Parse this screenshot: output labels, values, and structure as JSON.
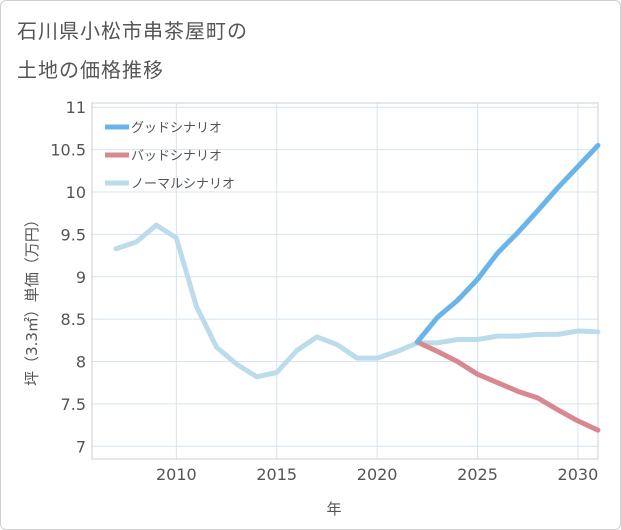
{
  "title_line1": "石川県小松市串茶屋町の",
  "title_line2": "土地の価格推移",
  "chart_data": {
    "type": "line",
    "title": "石川県小松市串茶屋町の土地の価格推移",
    "xlabel": "年",
    "ylabel": "坪（3.3㎡）単価（万円）",
    "xlim": [
      2005.8,
      2031
    ],
    "ylim": [
      6.85,
      11.05
    ],
    "x_ticks": [
      2010,
      2015,
      2020,
      2025,
      2030
    ],
    "y_ticks": [
      7,
      7.5,
      8,
      8.5,
      9,
      9.5,
      10,
      10.5,
      11
    ],
    "grid": true,
    "legend_position": "top-left",
    "series": [
      {
        "name": "グッドシナリオ",
        "color": "#6ab4ea",
        "x": [
          2022,
          2023,
          2024,
          2025,
          2026,
          2027,
          2028,
          2029,
          2030,
          2031
        ],
        "values": [
          8.23,
          8.52,
          8.72,
          8.97,
          9.28,
          9.52,
          9.78,
          10.05,
          10.3,
          10.55
        ]
      },
      {
        "name": "バッドシナリオ",
        "color": "#d88890",
        "x": [
          2022,
          2023,
          2024,
          2025,
          2026,
          2027,
          2028,
          2029,
          2030,
          2031
        ],
        "values": [
          8.23,
          8.12,
          8.0,
          7.85,
          7.75,
          7.65,
          7.57,
          7.43,
          7.3,
          7.19
        ]
      },
      {
        "name": "ノーマルシナリオ",
        "color": "#bcdcec",
        "x": [
          2007,
          2008,
          2009,
          2010,
          2011,
          2012,
          2013,
          2014,
          2015,
          2016,
          2017,
          2018,
          2019,
          2020,
          2021,
          2022,
          2023,
          2024,
          2025,
          2026,
          2027,
          2028,
          2029,
          2030,
          2031
        ],
        "values": [
          9.33,
          9.41,
          9.61,
          9.46,
          8.65,
          8.17,
          7.97,
          7.82,
          7.87,
          8.13,
          8.29,
          8.2,
          8.04,
          8.04,
          8.12,
          8.22,
          8.22,
          8.26,
          8.26,
          8.3,
          8.3,
          8.32,
          8.32,
          8.36,
          8.35
        ]
      }
    ]
  }
}
